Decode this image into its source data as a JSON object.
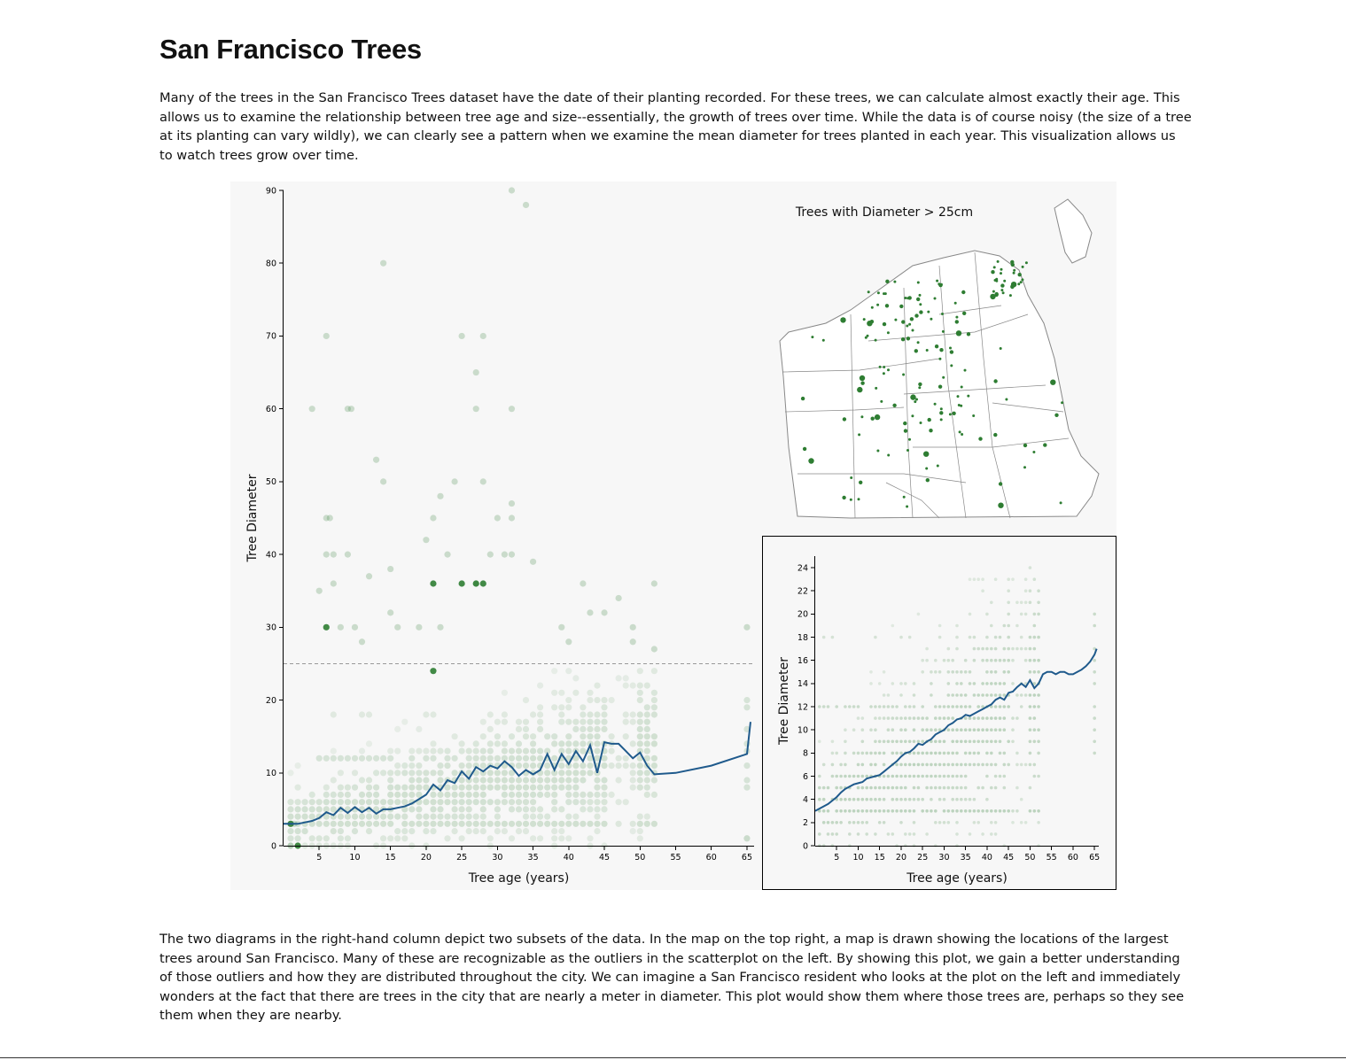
{
  "page": {
    "title": "San Francisco Trees",
    "intro": "Many of the trees in the San Francisco Trees dataset have the date of their planting recorded. For these trees, we can calculate almost exactly their age. This allows us to examine the relationship between tree age and size--essentially, the growth of trees over time. While the data is of course noisy (the size of a tree at its planting can vary wildly), we can clearly see a pattern when we examine the mean diameter for trees planted in each year. This visualization allows us to watch trees grow over time.",
    "outro": "The two diagrams in the right-hand column depict two subsets of the data. In the map on the top right, a map is drawn showing the locations of the largest trees around San Francisco. Many of these are recognizable as the outliers in the scatterplot on the left. By showing this plot, we gain a better understanding of those outliers and how they are distributed throughout the city. We can imagine a San Francisco resident who looks at the plot on the left and immediately wonders at the fact that there are trees in the city that are nearly a meter in diameter. This plot would show them where those trees are, perhaps so they see them when they are nearby."
  },
  "colors": {
    "point": "#2e7d32",
    "mean_line": "#1f5a8c",
    "threshold": "#999999",
    "panel_bg": "#f7f7f7",
    "map_stroke": "#888888"
  },
  "chart_data": [
    {
      "type": "scatter",
      "id": "main",
      "title": "",
      "xlabel": "Tree age (years)",
      "ylabel": "Tree Diameter",
      "xlim": [
        0,
        66
      ],
      "ylim": [
        0,
        90
      ],
      "xticks": [
        5,
        10,
        15,
        20,
        25,
        30,
        35,
        40,
        45,
        50,
        55,
        60,
        65
      ],
      "yticks": [
        0,
        10,
        20,
        30,
        40,
        50,
        60,
        70,
        80,
        90
      ],
      "threshold": 25,
      "outliers": [
        [
          1,
          0
        ],
        [
          1.5,
          3
        ],
        [
          4,
          60
        ],
        [
          5,
          35
        ],
        [
          6,
          45
        ],
        [
          6,
          70
        ],
        [
          6.5,
          45
        ],
        [
          6,
          40
        ],
        [
          7,
          36
        ],
        [
          7,
          40
        ],
        [
          8,
          30
        ],
        [
          9,
          60
        ],
        [
          9.5,
          60
        ],
        [
          9,
          40
        ],
        [
          10,
          30
        ],
        [
          11,
          28
        ],
        [
          12,
          37
        ],
        [
          13,
          53
        ],
        [
          14,
          80
        ],
        [
          14,
          50
        ],
        [
          15,
          38
        ],
        [
          15,
          32
        ],
        [
          16,
          30
        ],
        [
          19,
          30
        ],
        [
          20,
          42
        ],
        [
          21,
          45
        ],
        [
          22,
          48
        ],
        [
          23,
          40
        ],
        [
          22,
          30
        ],
        [
          24,
          50
        ],
        [
          25,
          70
        ],
        [
          27,
          36
        ],
        [
          27,
          65
        ],
        [
          28,
          70
        ],
        [
          27,
          60
        ],
        [
          28,
          50
        ],
        [
          29,
          40
        ],
        [
          30,
          45
        ],
        [
          31,
          40
        ],
        [
          32,
          90
        ],
        [
          32,
          60
        ],
        [
          32,
          47
        ],
        [
          32,
          40
        ],
        [
          32,
          45
        ],
        [
          34,
          88
        ],
        [
          35,
          39
        ],
        [
          39,
          30
        ],
        [
          40,
          28
        ],
        [
          42,
          36
        ],
        [
          43,
          32
        ],
        [
          45,
          32
        ],
        [
          47,
          34
        ],
        [
          49,
          30
        ],
        [
          49,
          28
        ],
        [
          52,
          36
        ],
        [
          52,
          27
        ],
        [
          65,
          30
        ],
        [
          65,
          1
        ]
      ],
      "dark_points": [
        [
          21,
          36
        ],
        [
          25,
          36
        ],
        [
          27,
          36
        ],
        [
          28,
          36
        ],
        [
          21,
          24
        ],
        [
          1,
          3
        ],
        [
          2,
          0
        ],
        [
          6,
          30
        ]
      ],
      "mean_line": {
        "x": [
          0,
          1,
          2,
          3,
          4,
          5,
          6,
          7,
          8,
          9,
          10,
          11,
          12,
          13,
          14,
          15,
          16,
          17,
          18,
          19,
          20,
          21,
          22,
          23,
          24,
          25,
          26,
          27,
          28,
          29,
          30,
          31,
          32,
          33,
          34,
          35,
          36,
          37,
          38,
          39,
          40,
          41,
          42,
          43,
          44,
          45,
          46,
          47,
          48,
          49,
          50,
          51,
          52,
          55,
          60,
          65,
          65.5
        ],
        "y": [
          3,
          3,
          3,
          3.2,
          3.4,
          3.8,
          4.6,
          4.2,
          5.2,
          4.5,
          5.3,
          4.6,
          5.2,
          4.4,
          5.0,
          5.0,
          5.2,
          5.4,
          5.8,
          6.4,
          7.0,
          8.4,
          7.6,
          9.0,
          8.6,
          10.2,
          9.2,
          10.8,
          10.2,
          11.0,
          10.6,
          11.6,
          10.8,
          9.6,
          10.4,
          9.8,
          10.4,
          12.6,
          10.4,
          12.6,
          11.2,
          13.0,
          11.6,
          13.8,
          10.0,
          14.2,
          14.0,
          14.0,
          13.0,
          12.0,
          12.8,
          11.0,
          9.8,
          10.0,
          11.0,
          12.6,
          17.0
        ]
      }
    },
    {
      "type": "scatter",
      "id": "inset",
      "title": "",
      "xlabel": "Tree age (years)",
      "ylabel": "Tree Diameter",
      "xlim": [
        0,
        66
      ],
      "ylim": [
        0,
        25
      ],
      "xticks": [
        5,
        10,
        15,
        20,
        25,
        30,
        35,
        40,
        45,
        50,
        55,
        60,
        65
      ],
      "yticks": [
        0,
        2,
        4,
        6,
        8,
        10,
        12,
        14,
        16,
        18,
        20,
        22,
        24
      ],
      "mean_line": {
        "x": [
          0,
          1,
          2,
          3,
          4,
          5,
          6,
          7,
          8,
          9,
          10,
          11,
          12,
          13,
          14,
          15,
          16,
          17,
          18,
          19,
          20,
          21,
          22,
          23,
          24,
          25,
          26,
          27,
          28,
          29,
          30,
          31,
          32,
          33,
          34,
          35,
          36,
          37,
          38,
          39,
          40,
          41,
          42,
          43,
          44,
          45,
          46,
          47,
          48,
          49,
          50,
          51,
          52,
          53,
          54,
          55,
          56,
          57,
          58,
          59,
          60,
          61,
          62,
          63,
          64,
          65,
          65.5
        ],
        "y": [
          3.0,
          3.2,
          3.4,
          3.6,
          3.9,
          4.2,
          4.6,
          4.9,
          5.1,
          5.3,
          5.4,
          5.5,
          5.8,
          5.9,
          6.0,
          6.1,
          6.4,
          6.7,
          7.0,
          7.3,
          7.7,
          8.0,
          8.1,
          8.4,
          8.8,
          8.7,
          9.0,
          9.2,
          9.6,
          9.8,
          10.0,
          10.4,
          10.6,
          10.9,
          11.0,
          11.3,
          11.2,
          11.4,
          11.6,
          11.8,
          12.0,
          12.2,
          12.6,
          12.8,
          12.6,
          13.2,
          13.3,
          13.7,
          14.0,
          13.7,
          14.3,
          13.6,
          14.0,
          14.8,
          15.0,
          15.0,
          14.8,
          15.0,
          15.0,
          14.8,
          14.8,
          15.0,
          15.2,
          15.5,
          15.9,
          16.5,
          17.0
        ]
      }
    },
    {
      "type": "map",
      "id": "large-trees-map",
      "title": "Trees with Diameter > 25cm"
    }
  ]
}
